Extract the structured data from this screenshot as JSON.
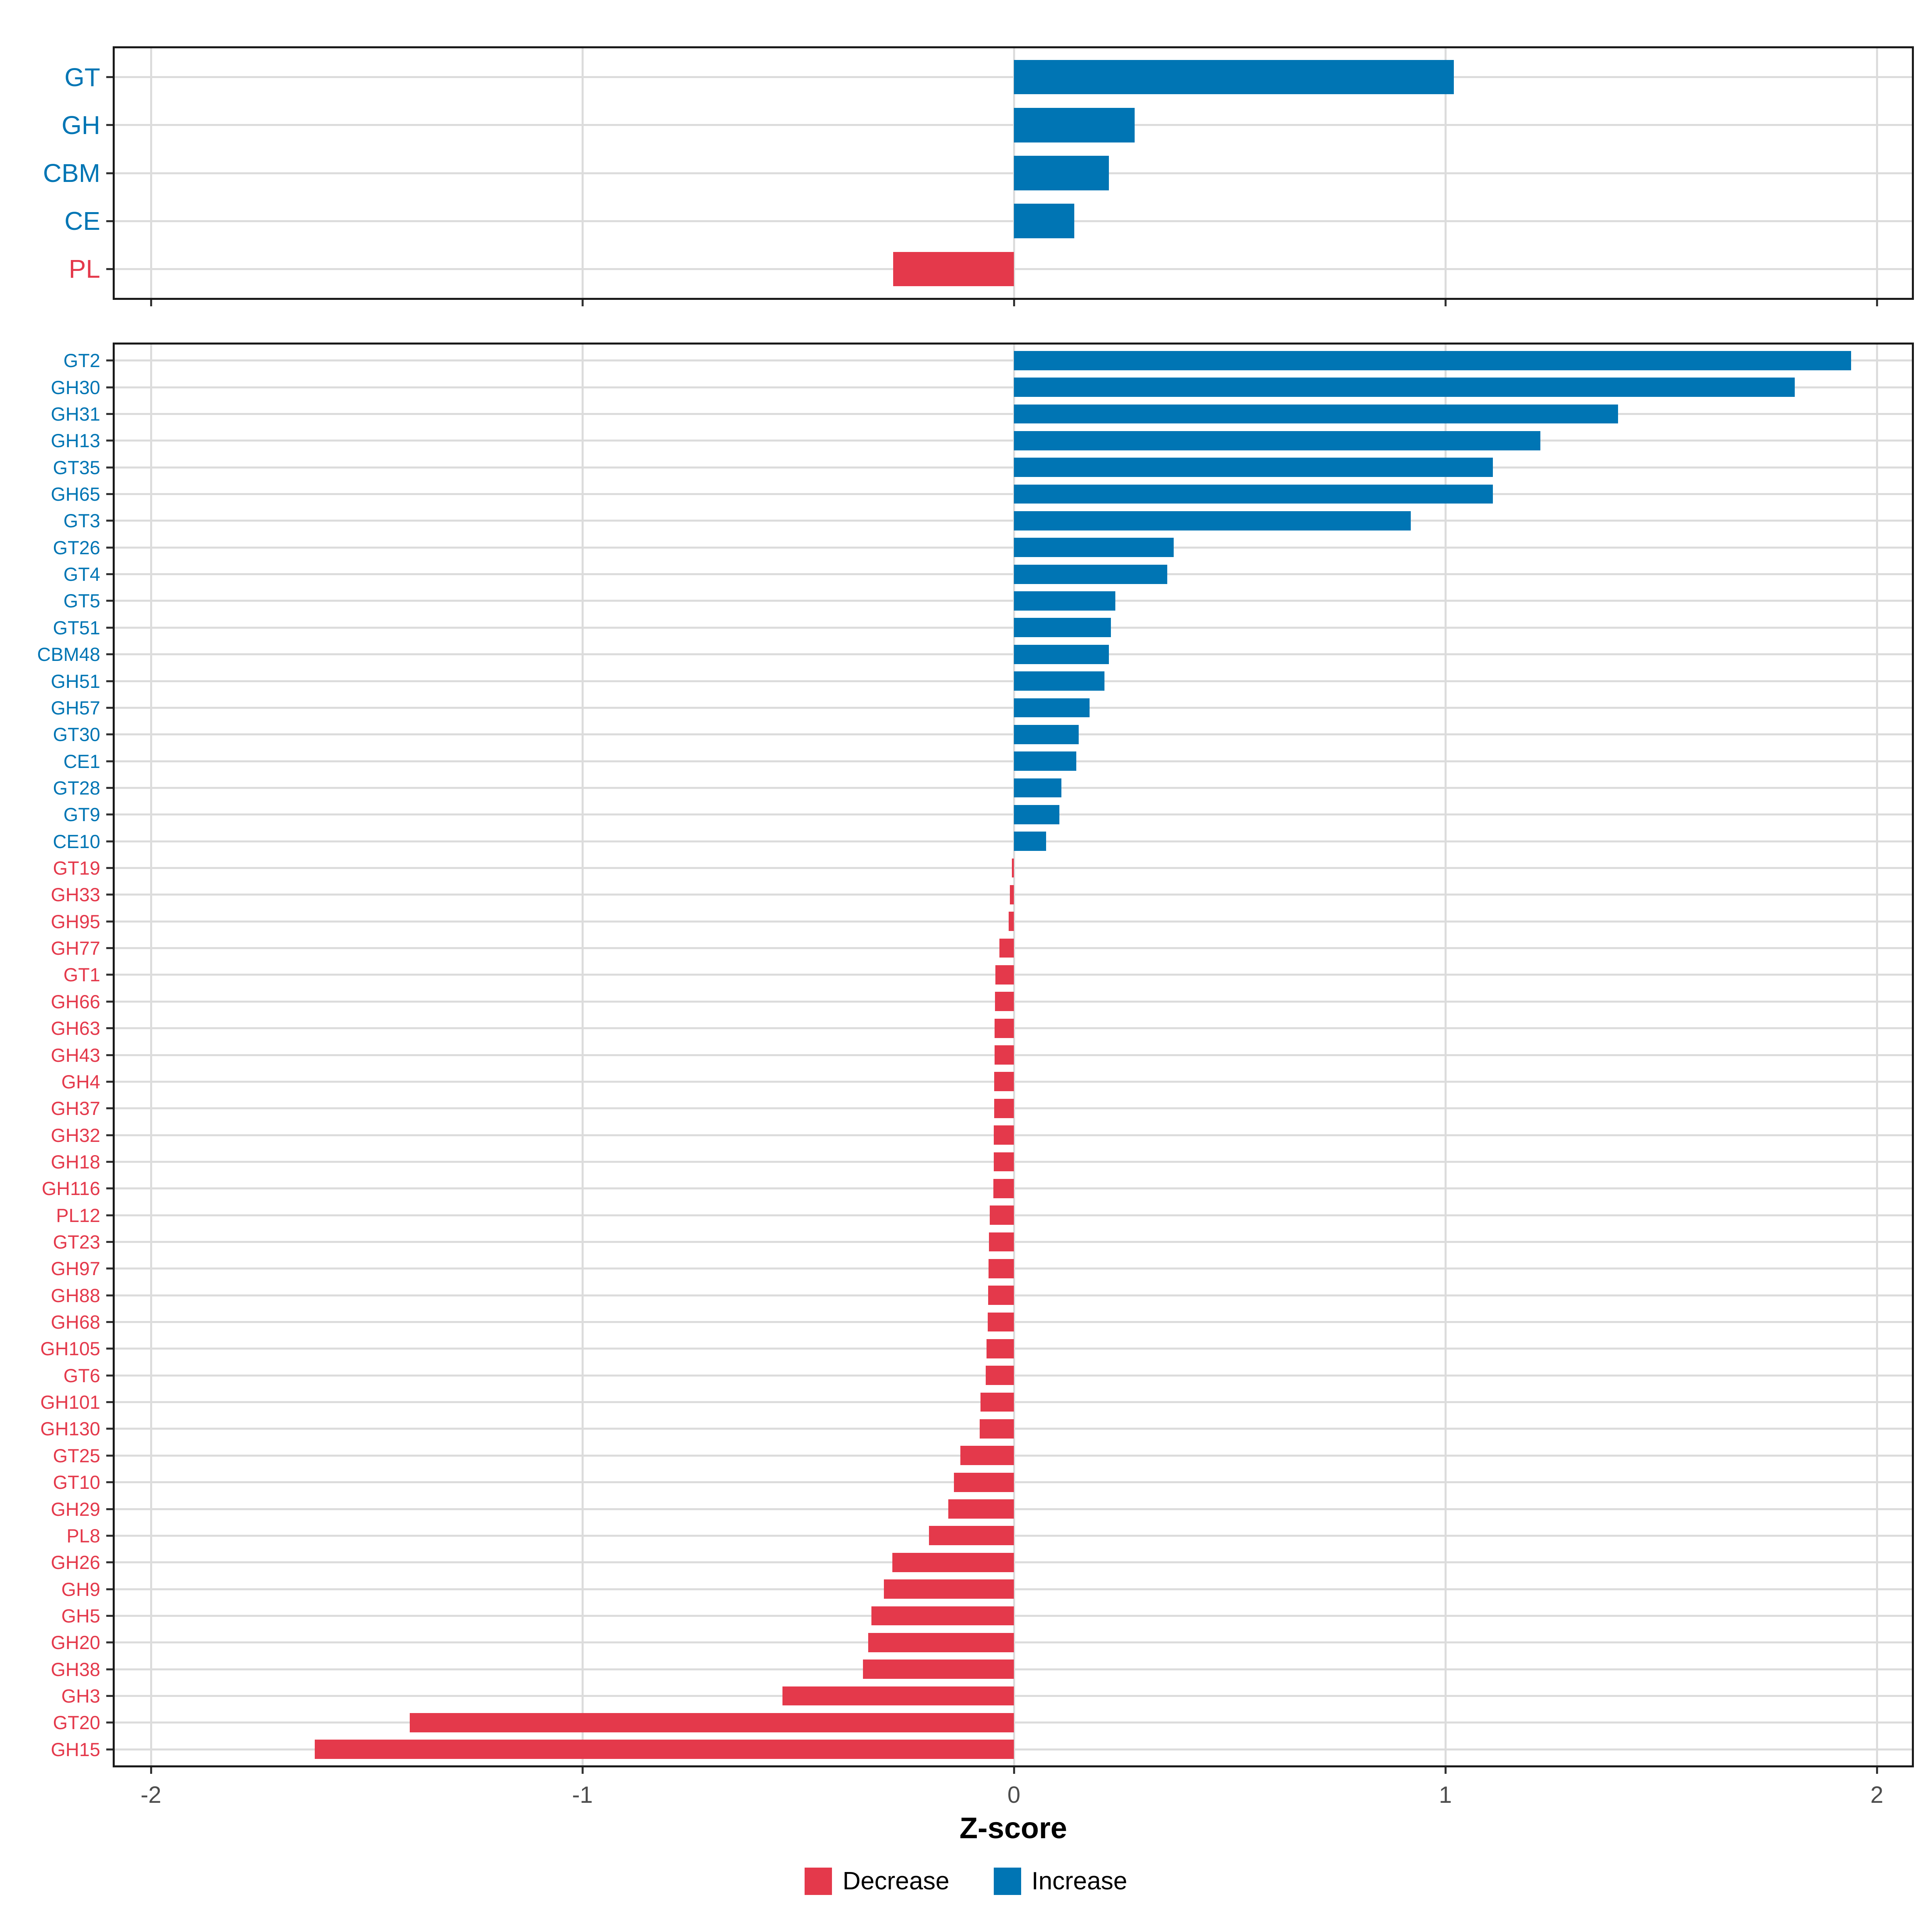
{
  "colors": {
    "increase": "#0075B4",
    "decrease": "#E4394B",
    "gridline": "#DCDCDC",
    "panel_border": "#1A1A1A",
    "tick_mark": "#333333",
    "axis_text": "#4D4D4D",
    "axis_title": "#000000"
  },
  "chart_data": {
    "type": "bar",
    "orientation": "horizontal",
    "title": "",
    "xlabel": "Z-score",
    "ylabel": "",
    "xlim": [
      -2.09,
      2.08
    ],
    "x_ticks": [
      -2,
      -1,
      0,
      1,
      2
    ],
    "x_tick_labels": [
      "-2",
      "-1",
      "0",
      "1",
      "2"
    ],
    "grid": true,
    "legend_position": "bottom",
    "legend": [
      {
        "label": "Decrease",
        "color": "#E4394B"
      },
      {
        "label": "Increase",
        "color": "#0075B4"
      }
    ],
    "panels": [
      {
        "name": "cazyme-classes",
        "categories": [
          "GT",
          "GH",
          "CBM",
          "CE",
          "PL"
        ],
        "values": [
          1.02,
          0.28,
          0.22,
          0.14,
          -0.28
        ]
      },
      {
        "name": "cazyme-families",
        "categories": [
          "GT2",
          "GH30",
          "GH31",
          "GH13",
          "GT35",
          "GH65",
          "GT3",
          "GT26",
          "GT4",
          "GT5",
          "GT51",
          "CBM48",
          "GH51",
          "GH57",
          "GT30",
          "CE1",
          "GT28",
          "GT9",
          "CE10",
          "GT19",
          "GH33",
          "GH95",
          "GH77",
          "GT1",
          "GH66",
          "GH63",
          "GH43",
          "GH4",
          "GH37",
          "GH32",
          "GH18",
          "GH116",
          "PL12",
          "GT23",
          "GH97",
          "GH88",
          "GH68",
          "GH105",
          "GT6",
          "GH101",
          "GH130",
          "GT25",
          "GT10",
          "GH29",
          "PL8",
          "GH26",
          "GH9",
          "GH5",
          "GH20",
          "GH38",
          "GH3",
          "GT20",
          "GH15"
        ],
        "values": [
          1.94,
          1.81,
          1.4,
          1.22,
          1.11,
          1.11,
          0.92,
          0.37,
          0.355,
          0.235,
          0.225,
          0.22,
          0.21,
          0.175,
          0.15,
          0.145,
          0.11,
          0.105,
          0.075,
          -0.005,
          -0.009,
          -0.012,
          -0.034,
          -0.043,
          -0.044,
          -0.045,
          -0.045,
          -0.046,
          -0.046,
          -0.047,
          -0.047,
          -0.048,
          -0.056,
          -0.058,
          -0.059,
          -0.06,
          -0.061,
          -0.063,
          -0.065,
          -0.077,
          -0.079,
          -0.124,
          -0.139,
          -0.152,
          -0.197,
          -0.282,
          -0.301,
          -0.33,
          -0.338,
          -0.35,
          -0.536,
          -1.4,
          -1.62
        ]
      }
    ]
  }
}
